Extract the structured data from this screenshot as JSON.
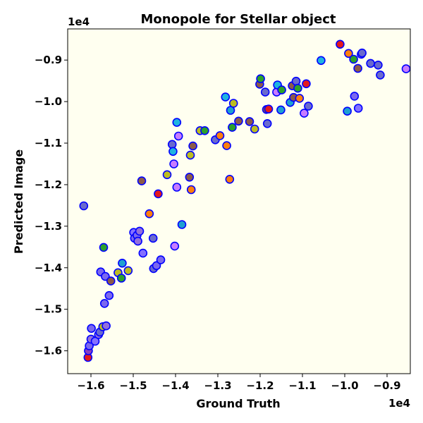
{
  "chart_data": {
    "type": "scatter",
    "title": "Monopole for Stellar object",
    "xlabel": "Ground Truth",
    "ylabel": "Predicted Image",
    "x_offset_text": "1e4",
    "y_offset_text": "1e4",
    "xlim": [
      -1.655,
      -0.845
    ],
    "ylim": [
      -1.655,
      -0.825
    ],
    "xticks": [
      -1.6,
      -1.5,
      -1.4,
      -1.3,
      -1.2,
      -1.1,
      -1.0,
      -0.9
    ],
    "xtick_labels": [
      "−1.6",
      "−1.5",
      "−1.4",
      "−1.3",
      "−1.2",
      "−1.1",
      "−1.0",
      "−0.9"
    ],
    "yticks": [
      -1.6,
      -1.5,
      -1.4,
      -1.3,
      -1.2,
      -1.1,
      -1.0,
      -0.9
    ],
    "ytick_labels": [
      "−1.6",
      "−1.5",
      "−1.4",
      "−1.3",
      "−1.2",
      "−1.1",
      "−1.0",
      "−0.9"
    ],
    "grid": false,
    "background_color": "#fffff0",
    "marker_edge_color": "#0000ff",
    "points": [
      {
        "x": -1.617,
        "y": -1.251,
        "c": "#6a6acd"
      },
      {
        "x": -1.607,
        "y": -1.616,
        "c": "#e31a1c"
      },
      {
        "x": -1.606,
        "y": -1.6,
        "c": "#8a3fc0"
      },
      {
        "x": -1.604,
        "y": -1.588,
        "c": "#7b68ee"
      },
      {
        "x": -1.6,
        "y": -1.572,
        "c": "#9370db"
      },
      {
        "x": -1.599,
        "y": -1.546,
        "c": "#7b68ee"
      },
      {
        "x": -1.59,
        "y": -1.577,
        "c": "#8470ff"
      },
      {
        "x": -1.582,
        "y": -1.561,
        "c": "#9370db"
      },
      {
        "x": -1.579,
        "y": -1.555,
        "c": "#6a6acd"
      },
      {
        "x": -1.577,
        "y": -1.41,
        "c": "#7b68ee"
      },
      {
        "x": -1.572,
        "y": -1.542,
        "c": "#bcbd22"
      },
      {
        "x": -1.57,
        "y": -1.351,
        "c": "#2ca02c"
      },
      {
        "x": -1.568,
        "y": -1.486,
        "c": "#7b68ee"
      },
      {
        "x": -1.566,
        "y": -1.421,
        "c": "#7b68ee"
      },
      {
        "x": -1.564,
        "y": -1.54,
        "c": "#9370db"
      },
      {
        "x": -1.557,
        "y": -1.467,
        "c": "#7b68ee"
      },
      {
        "x": -1.553,
        "y": -1.432,
        "c": "#8b5a4a"
      },
      {
        "x": -1.536,
        "y": -1.412,
        "c": "#bcbd22"
      },
      {
        "x": -1.528,
        "y": -1.425,
        "c": "#2ca02c"
      },
      {
        "x": -1.526,
        "y": -1.389,
        "c": "#1fa0d0"
      },
      {
        "x": -1.512,
        "y": -1.407,
        "c": "#bcbd22"
      },
      {
        "x": -1.499,
        "y": -1.315,
        "c": "#8470ff"
      },
      {
        "x": -1.497,
        "y": -1.329,
        "c": "#7b68ee"
      },
      {
        "x": -1.491,
        "y": -1.322,
        "c": "#7b68ee"
      },
      {
        "x": -1.489,
        "y": -1.336,
        "c": "#9370db"
      },
      {
        "x": -1.485,
        "y": -1.312,
        "c": "#9370db"
      },
      {
        "x": -1.48,
        "y": -1.191,
        "c": "#8b5a4a"
      },
      {
        "x": -1.477,
        "y": -1.365,
        "c": "#8470ff"
      },
      {
        "x": -1.462,
        "y": -1.27,
        "c": "#ff7f0e"
      },
      {
        "x": -1.453,
        "y": -1.329,
        "c": "#6a6acd"
      },
      {
        "x": -1.452,
        "y": -1.402,
        "c": "#6a6acd"
      },
      {
        "x": -1.445,
        "y": -1.395,
        "c": "#7b68ee"
      },
      {
        "x": -1.441,
        "y": -1.222,
        "c": "#e31a1c"
      },
      {
        "x": -1.435,
        "y": -1.381,
        "c": "#7b68ee"
      },
      {
        "x": -1.42,
        "y": -1.176,
        "c": "#bcbd22"
      },
      {
        "x": -1.408,
        "y": -1.103,
        "c": "#6a6acd"
      },
      {
        "x": -1.406,
        "y": -1.12,
        "c": "#1fb4e0"
      },
      {
        "x": -1.404,
        "y": -1.15,
        "c": "#c77cff"
      },
      {
        "x": -1.402,
        "y": -1.348,
        "c": "#c77cff"
      },
      {
        "x": -1.397,
        "y": -1.05,
        "c": "#1fb4e0"
      },
      {
        "x": -1.397,
        "y": -1.206,
        "c": "#c77cff"
      },
      {
        "x": -1.393,
        "y": -1.083,
        "c": "#c77cff"
      },
      {
        "x": -1.385,
        "y": -1.296,
        "c": "#1fa0d0"
      },
      {
        "x": -1.367,
        "y": -1.182,
        "c": "#8b5a4a"
      },
      {
        "x": -1.365,
        "y": -1.129,
        "c": "#bcbd22"
      },
      {
        "x": -1.363,
        "y": -1.212,
        "c": "#ff7f0e"
      },
      {
        "x": -1.359,
        "y": -1.107,
        "c": "#8b5a4a"
      },
      {
        "x": -1.342,
        "y": -1.07,
        "c": "#bcbd22"
      },
      {
        "x": -1.331,
        "y": -1.07,
        "c": "#2ca02c"
      },
      {
        "x": -1.306,
        "y": -1.092,
        "c": "#6a6acd"
      },
      {
        "x": -1.295,
        "y": -1.082,
        "c": "#ff7f0e"
      },
      {
        "x": -1.282,
        "y": -0.989,
        "c": "#1fb4e0"
      },
      {
        "x": -1.279,
        "y": -1.106,
        "c": "#ff7f0e"
      },
      {
        "x": -1.272,
        "y": -1.187,
        "c": "#ff7f0e"
      },
      {
        "x": -1.27,
        "y": -1.021,
        "c": "#1fa0d0"
      },
      {
        "x": -1.266,
        "y": -1.062,
        "c": "#2ca02c"
      },
      {
        "x": -1.263,
        "y": -1.004,
        "c": "#bcbd22"
      },
      {
        "x": -1.251,
        "y": -1.047,
        "c": "#8b5a4a"
      },
      {
        "x": -1.225,
        "y": -1.048,
        "c": "#8b5a4a"
      },
      {
        "x": -1.213,
        "y": -1.066,
        "c": "#bcbd22"
      },
      {
        "x": -1.201,
        "y": -0.958,
        "c": "#8b5a4a"
      },
      {
        "x": -1.199,
        "y": -0.945,
        "c": "#2ca02c"
      },
      {
        "x": -1.188,
        "y": -0.977,
        "c": "#6a6acd"
      },
      {
        "x": -1.185,
        "y": -1.019,
        "c": "#8b5a4a"
      },
      {
        "x": -1.183,
        "y": -1.053,
        "c": "#6a6acd"
      },
      {
        "x": -1.18,
        "y": -1.018,
        "c": "#e31a1c"
      },
      {
        "x": -1.161,
        "y": -0.977,
        "c": "#c77cff"
      },
      {
        "x": -1.159,
        "y": -0.96,
        "c": "#1fb4e0"
      },
      {
        "x": -1.151,
        "y": -1.02,
        "c": "#1fa0d0"
      },
      {
        "x": -1.149,
        "y": -0.972,
        "c": "#2ca02c"
      },
      {
        "x": -1.129,
        "y": -1.002,
        "c": "#1fa0d0"
      },
      {
        "x": -1.124,
        "y": -0.962,
        "c": "#8b5a4a"
      },
      {
        "x": -1.121,
        "y": -0.99,
        "c": "#8b5a4a"
      },
      {
        "x": -1.115,
        "y": -0.951,
        "c": "#6a6acd"
      },
      {
        "x": -1.111,
        "y": -0.968,
        "c": "#2ca02c"
      },
      {
        "x": -1.107,
        "y": -0.992,
        "c": "#ff7f0e"
      },
      {
        "x": -1.096,
        "y": -1.028,
        "c": "#c77cff"
      },
      {
        "x": -1.091,
        "y": -0.957,
        "c": "#e31a1c"
      },
      {
        "x": -1.086,
        "y": -1.011,
        "c": "#6a6acd"
      },
      {
        "x": -1.056,
        "y": -0.901,
        "c": "#1fb4e0"
      },
      {
        "x": -1.011,
        "y": -0.862,
        "c": "#e31a1c"
      },
      {
        "x": -0.994,
        "y": -1.023,
        "c": "#1fa0d0"
      },
      {
        "x": -0.991,
        "y": -0.884,
        "c": "#ff7f0e"
      },
      {
        "x": -0.979,
        "y": -0.898,
        "c": "#2ca02c"
      },
      {
        "x": -0.977,
        "y": -0.987,
        "c": "#7b68ee"
      },
      {
        "x": -0.969,
        "y": -0.92,
        "c": "#8b5a4a"
      },
      {
        "x": -0.968,
        "y": -1.016,
        "c": "#8470ff"
      },
      {
        "x": -0.961,
        "y": -0.886,
        "c": "#9370db"
      },
      {
        "x": -0.959,
        "y": -0.883,
        "c": "#6a6acd"
      },
      {
        "x": -0.939,
        "y": -0.908,
        "c": "#6a6acd"
      },
      {
        "x": -0.921,
        "y": -0.912,
        "c": "#6a6acd"
      },
      {
        "x": -0.916,
        "y": -0.936,
        "c": "#6a6acd"
      },
      {
        "x": -0.855,
        "y": -0.921,
        "c": "#c77cff"
      }
    ]
  }
}
